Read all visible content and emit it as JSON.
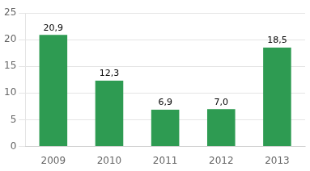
{
  "chart_data": {
    "type": "bar",
    "categories": [
      "2009",
      "2010",
      "2011",
      "2012",
      "2013"
    ],
    "values": [
      20.9,
      12.3,
      6.9,
      7.0,
      18.5
    ],
    "value_labels": [
      "20,9",
      "12,3",
      "6,9",
      "7,0",
      "18,5"
    ],
    "data_labels": true,
    "color": "#2e9b52",
    "ylim": [
      0,
      25
    ],
    "yticks": [
      0,
      5,
      10,
      15,
      20,
      25
    ],
    "grid": true
  }
}
